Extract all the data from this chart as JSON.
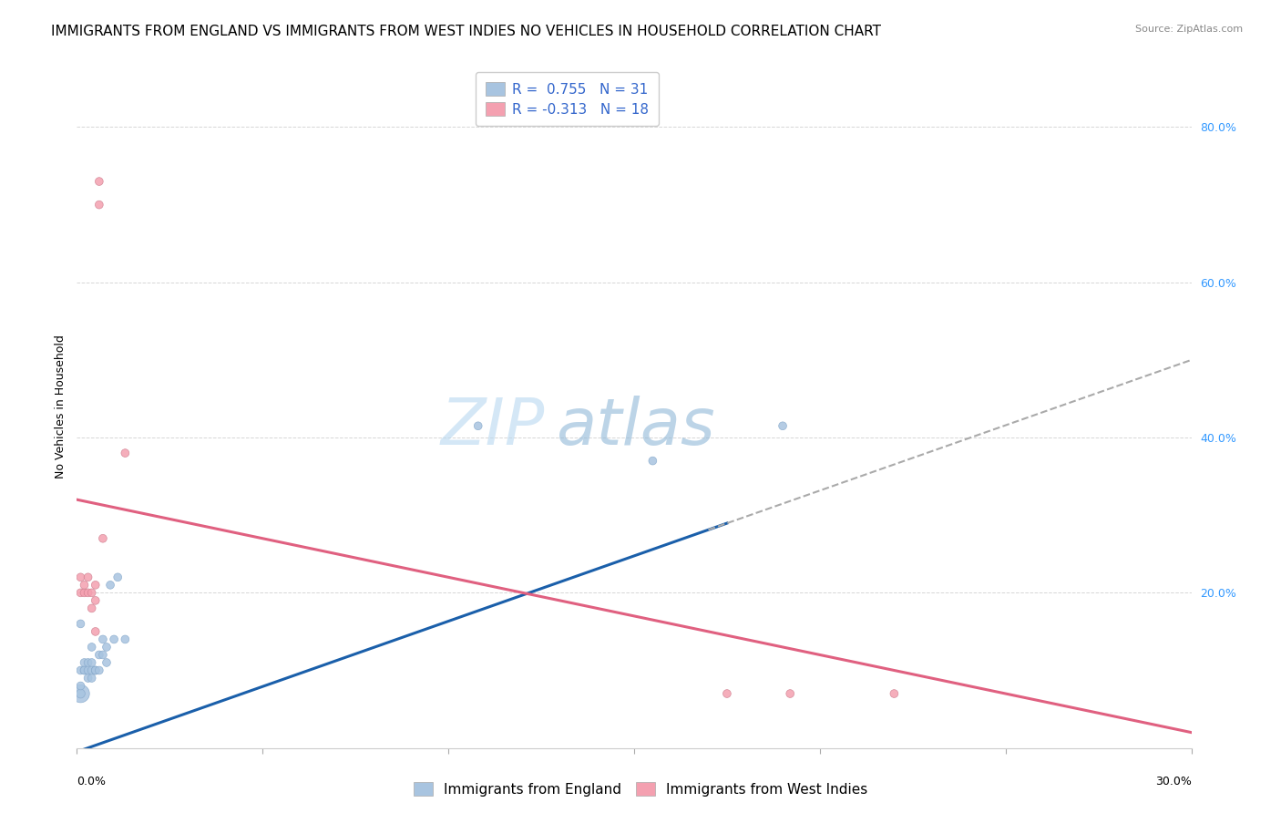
{
  "title": "IMMIGRANTS FROM ENGLAND VS IMMIGRANTS FROM WEST INDIES NO VEHICLES IN HOUSEHOLD CORRELATION CHART",
  "source": "Source: ZipAtlas.com",
  "ylabel": "No Vehicles in Household",
  "ylabel_right_ticks": [
    "80.0%",
    "60.0%",
    "40.0%",
    "20.0%"
  ],
  "ylabel_right_vals": [
    0.8,
    0.6,
    0.4,
    0.2
  ],
  "xlim": [
    0.0,
    0.3
  ],
  "ylim": [
    0.0,
    0.88
  ],
  "legend_entry1": "R =  0.755   N = 31",
  "legend_entry2": "R = -0.313   N = 18",
  "legend_label1": "Immigrants from England",
  "legend_label2": "Immigrants from West Indies",
  "color_england": "#a8c4e0",
  "color_westindies": "#f4a0b0",
  "trendline_england_color": "#1a5faa",
  "trendline_westindies_color": "#e06080",
  "trendline_ext_color": "#aaaaaa",
  "watermark": "ZIPatlas",
  "england_x": [
    0.001,
    0.001,
    0.001,
    0.001,
    0.002,
    0.002,
    0.002,
    0.003,
    0.003,
    0.003,
    0.004,
    0.004,
    0.004,
    0.004,
    0.005,
    0.005,
    0.005,
    0.006,
    0.006,
    0.007,
    0.007,
    0.008,
    0.008,
    0.009,
    0.01,
    0.011,
    0.013,
    0.001,
    0.108,
    0.155,
    0.19
  ],
  "england_y": [
    0.07,
    0.07,
    0.08,
    0.1,
    0.1,
    0.11,
    0.1,
    0.11,
    0.09,
    0.1,
    0.13,
    0.11,
    0.09,
    0.1,
    0.1,
    0.1,
    0.1,
    0.1,
    0.12,
    0.14,
    0.12,
    0.13,
    0.11,
    0.21,
    0.14,
    0.22,
    0.14,
    0.16,
    0.415,
    0.37,
    0.415
  ],
  "england_sizes": [
    200,
    50,
    40,
    40,
    40,
    40,
    40,
    40,
    40,
    40,
    40,
    40,
    40,
    40,
    40,
    40,
    40,
    40,
    40,
    40,
    40,
    40,
    40,
    40,
    40,
    40,
    40,
    40,
    40,
    40,
    40
  ],
  "westindies_x": [
    0.001,
    0.001,
    0.002,
    0.002,
    0.003,
    0.003,
    0.004,
    0.004,
    0.005,
    0.006,
    0.005,
    0.005,
    0.006,
    0.007,
    0.013,
    0.175,
    0.192,
    0.22
  ],
  "westindies_y": [
    0.2,
    0.22,
    0.2,
    0.21,
    0.22,
    0.2,
    0.2,
    0.18,
    0.15,
    0.73,
    0.19,
    0.21,
    0.7,
    0.27,
    0.38,
    0.07,
    0.07,
    0.07
  ],
  "westindies_sizes": [
    40,
    40,
    40,
    40,
    40,
    40,
    40,
    40,
    40,
    40,
    40,
    40,
    40,
    40,
    40,
    40,
    40,
    40
  ],
  "grid_color": "#cccccc",
  "background_color": "#ffffff",
  "title_fontsize": 11,
  "axis_label_fontsize": 9,
  "tick_label_fontsize": 9,
  "legend_fontsize": 11,
  "watermark_fontsize": 52,
  "watermark_color": "#cce0f0",
  "watermark_alpha": 0.5,
  "england_trendline_x0": 0.0,
  "england_trendline_y0": -0.005,
  "england_trendline_x_solid_end": 0.175,
  "england_trendline_x_dash_start": 0.17,
  "england_trendline_x1": 0.3,
  "england_trendline_y1": 0.5,
  "wi_trendline_x0": 0.0,
  "wi_trendline_y0": 0.32,
  "wi_trendline_x1": 0.3,
  "wi_trendline_y1": 0.02
}
